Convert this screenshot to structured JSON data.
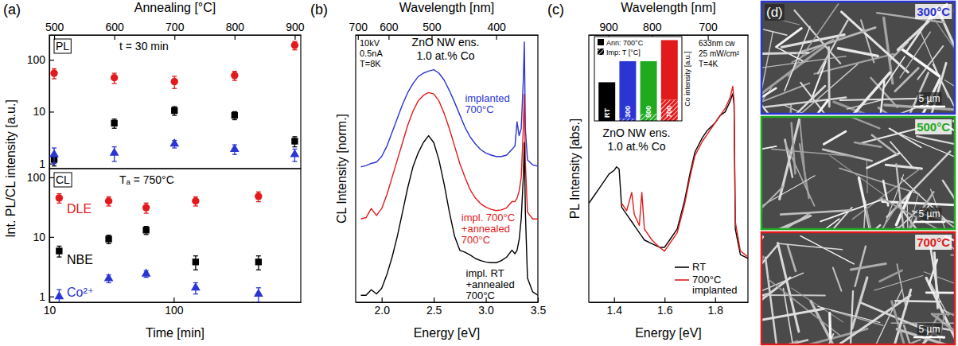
{
  "chart_data": [
    {
      "type": "scatter",
      "panel_label": "(a)",
      "title": "PL",
      "subtitle": "t = 30 min",
      "xlabel": "Annealing [°C]",
      "ylabel": "Int. PL/CL intensity [a.u.]",
      "x": [
        500,
        600,
        700,
        800,
        900
      ],
      "xlim": [
        492,
        910
      ],
      "xticks": [
        500,
        600,
        700,
        800,
        900
      ],
      "ylim": [
        0.8,
        300
      ],
      "yticks": [
        1,
        10,
        100
      ],
      "log": "y",
      "series": [
        {
          "color": "#e31a1c",
          "marker": "circle",
          "values": [
            55,
            45,
            38,
            50,
            190
          ],
          "errors": [
            12,
            10,
            10,
            10,
            35
          ]
        },
        {
          "color": "#000000",
          "marker": "square",
          "values": [
            1.2,
            6,
            10.5,
            8.5,
            2.7
          ],
          "errors": [
            0.3,
            1.2,
            2,
            1.5,
            0.6
          ]
        },
        {
          "color": "#2a35d4",
          "marker": "triangle",
          "values": [
            1.5,
            1.6,
            2.4,
            1.9,
            1.5
          ],
          "errors": [
            0.5,
            0.5,
            0.4,
            0.4,
            0.4
          ]
        }
      ]
    },
    {
      "type": "scatter",
      "title": "CL",
      "subtitle": "Tₐ = 750°C",
      "xlabel": "Time [min]",
      "x": [
        12,
        30,
        60,
        150,
        480
      ],
      "xlim": [
        10,
        1050
      ],
      "xticks": [
        10,
        100
      ],
      "ylim": [
        0.8,
        140
      ],
      "yticks": [
        1,
        10,
        100
      ],
      "log": true,
      "legend": "left",
      "series": [
        {
          "name": "DLE",
          "color": "#e31a1c",
          "marker": "circle",
          "values": [
            45,
            40,
            31,
            40,
            48
          ],
          "errors": [
            8,
            7,
            6,
            7,
            9
          ]
        },
        {
          "name": "NBE",
          "color": "#000000",
          "marker": "square",
          "values": [
            5.8,
            9.2,
            13,
            3.8,
            3.8
          ],
          "errors": [
            1.2,
            1.5,
            2,
            1,
            1
          ]
        },
        {
          "name": "Co²⁺",
          "color": "#2a35d4",
          "marker": "triangle",
          "values": [
            1,
            2,
            2.4,
            1.4,
            1.1
          ],
          "errors": [
            0.3,
            0.3,
            0.3,
            0.3,
            0.3
          ]
        }
      ]
    },
    {
      "type": "line",
      "panel_label": "(b)",
      "xlabel": "Energy [eV]",
      "x2label": "Wavelength [nm]",
      "ylabel": "CL Intensity [norm.]",
      "annotations": [
        "10kV",
        "0.5nA",
        "T=8K",
        "ZnO NW ens.",
        "1.0 at.% Co"
      ],
      "x": [
        1.8,
        1.85,
        1.9,
        1.95,
        2.0,
        2.05,
        2.1,
        2.15,
        2.2,
        2.25,
        2.3,
        2.35,
        2.4,
        2.45,
        2.5,
        2.55,
        2.6,
        2.65,
        2.7,
        2.75,
        2.8,
        2.85,
        2.9,
        2.95,
        3.0,
        3.05,
        3.1,
        3.15,
        3.2,
        3.25,
        3.28,
        3.3,
        3.32,
        3.34,
        3.36,
        3.37,
        3.38,
        3.4,
        3.45,
        3.5
      ],
      "xlim": [
        1.75,
        3.5
      ],
      "xticks": [
        {
          "value": 2,
          "label": "2.0"
        },
        2.5,
        {
          "value": 3,
          "label": "3.0"
        },
        3.5
      ],
      "x2lim": [
        708.5,
        354.2
      ],
      "x2ticks": [
        700,
        600,
        500,
        400
      ],
      "ylim": [
        0,
        3.85
      ],
      "tick_labels": "x",
      "series": [
        {
          "name": "implanted 700°C",
          "color": "#2a35d4",
          "values": [
            1.95,
            1.97,
            2.0,
            2.02,
            2.1,
            2.25,
            2.45,
            2.65,
            2.85,
            3.02,
            3.15,
            3.25,
            3.3,
            3.33,
            3.35,
            3.3,
            3.2,
            3.05,
            2.88,
            2.7,
            2.52,
            2.38,
            2.28,
            2.2,
            2.15,
            2.12,
            2.1,
            2.1,
            2.12,
            2.2,
            2.25,
            2.6,
            2.4,
            2.5,
            3.2,
            3.75,
            2.5,
            2.05,
            1.98,
            1.96
          ]
        },
        {
          "name": "impl. 700°C +annealed 700°C",
          "color": "#e31a1c",
          "values": [
            1.2,
            1.22,
            1.35,
            1.25,
            1.35,
            1.55,
            1.8,
            2.05,
            2.3,
            2.55,
            2.75,
            2.9,
            2.98,
            3.02,
            3.0,
            2.9,
            2.72,
            2.5,
            2.25,
            2.0,
            1.8,
            1.62,
            1.5,
            1.42,
            1.37,
            1.34,
            1.32,
            1.33,
            1.36,
            1.45,
            1.45,
            1.5,
            1.6,
            1.8,
            2.5,
            3.0,
            2.0,
            1.3,
            1.2,
            1.2
          ]
        },
        {
          "name": "impl. RT +annealed 700°C",
          "color": "#000000",
          "values": [
            0.1,
            0.1,
            0.18,
            0.12,
            0.2,
            0.4,
            0.65,
            0.95,
            1.3,
            1.65,
            1.95,
            2.15,
            2.3,
            2.4,
            2.3,
            2.05,
            1.7,
            1.3,
            0.95,
            0.75,
            0.72,
            0.68,
            0.63,
            0.6,
            0.58,
            0.57,
            0.57,
            0.6,
            0.65,
            0.75,
            0.7,
            0.75,
            0.9,
            1.2,
            1.8,
            2.3,
            1.3,
            0.35,
            0.15,
            0.1
          ]
        }
      ]
    },
    {
      "type": "line",
      "panel_label": "(c)",
      "xlabel": "Energy [eV]",
      "x2label": "Wavelength [nm]",
      "ylabel": "PL Intensity [abs.]",
      "annotations": [
        "633nm cw",
        "25 mW/cm²",
        "T=4K",
        "ZnO NW ens.",
        "1.0 at.% Co"
      ],
      "x": [
        1.3,
        1.32,
        1.34,
        1.36,
        1.38,
        1.4,
        1.41,
        1.42,
        1.43,
        1.45,
        1.47,
        1.48,
        1.5,
        1.51,
        1.52,
        1.55,
        1.58,
        1.6,
        1.62,
        1.65,
        1.68,
        1.7,
        1.72,
        1.75,
        1.77,
        1.8,
        1.82,
        1.84,
        1.86,
        1.87,
        1.875,
        1.88,
        1.9,
        1.93
      ],
      "xlim": [
        1.3,
        1.93
      ],
      "xticks": [
        1.4,
        1.6,
        1.8
      ],
      "x2lim": [
        953.7,
        642.4
      ],
      "x2ticks": [
        900,
        800,
        700
      ],
      "ylim": [
        0,
        3.65
      ],
      "tick_labels": "x",
      "legend": "lower right",
      "series": [
        {
          "name": "RT",
          "color": "#000000",
          "values": [
            1.35,
            1.45,
            1.55,
            1.65,
            1.75,
            1.8,
            1.85,
            1.82,
            1.3,
            1.2,
            1.1,
            1.05,
            0.95,
            0.9,
            0.85,
            0.8,
            0.75,
            0.75,
            0.85,
            1.0,
            1.4,
            1.75,
            2.05,
            2.25,
            2.35,
            2.45,
            2.55,
            2.6,
            2.75,
            2.85,
            2.7,
            1.0,
            0.65,
            0.6
          ]
        },
        {
          "name": "700°C implanted",
          "color": "#e31a1c",
          "values": [
            null,
            null,
            null,
            null,
            null,
            null,
            null,
            null,
            1.35,
            1.25,
            1.5,
            1.2,
            1.05,
            1.5,
            1.0,
            0.85,
            0.75,
            0.7,
            0.8,
            0.95,
            1.35,
            1.7,
            2.0,
            2.2,
            2.3,
            2.45,
            2.55,
            2.65,
            2.8,
            2.95,
            2.75,
            1.1,
            0.7,
            0.62
          ]
        }
      ]
    },
    {
      "type": "bar",
      "stacked": true,
      "ylabel": "Co intensity [a.u.]",
      "categories": [
        "RT",
        "300",
        "500",
        "700"
      ],
      "colors": [
        "#000000",
        "#2a35d4",
        "#1faa1f",
        "#e31a1c"
      ],
      "ylim": [
        0,
        1.2
      ],
      "legend": "upper left",
      "series": [
        {
          "name": "Ann: 700°C",
          "values": [
            0.55,
            0.82,
            0.75,
            0.85
          ]
        },
        {
          "name": "Imp: T [°C]",
          "values": [
            0,
            0.03,
            0.1,
            0.3
          ]
        }
      ]
    },
    {
      "type": "image",
      "panel_label": "(d)",
      "panels": [
        {
          "title": "300°C",
          "color": "#2a35d4",
          "scale_bar": "5 µm"
        },
        {
          "title": "500°C",
          "color": "#1faa1f",
          "scale_bar": "5 µm"
        },
        {
          "title": "700°C",
          "color": "#e31a1c",
          "scale_bar": "5 µm"
        }
      ]
    }
  ]
}
